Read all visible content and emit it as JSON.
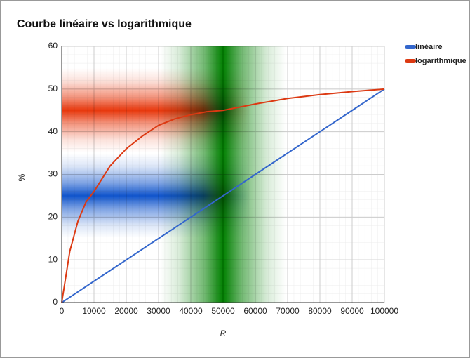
{
  "chart_data": {
    "type": "line",
    "title": "Courbe linéaire vs logarithmique",
    "x_label": "R",
    "y_label": "%",
    "x": [
      0,
      2500,
      5000,
      7500,
      10000,
      15000,
      20000,
      25000,
      30000,
      35000,
      40000,
      45000,
      50000,
      60000,
      70000,
      80000,
      90000,
      100000
    ],
    "series": [
      {
        "name": "linéaire",
        "color": "#3366cc",
        "values": [
          0,
          1.25,
          2.5,
          3.75,
          5,
          7.5,
          10,
          12.5,
          15,
          17.5,
          20,
          22.5,
          25,
          30,
          35,
          40,
          45,
          50
        ]
      },
      {
        "name": "logarithmique",
        "color": "#dc3912",
        "values": [
          0,
          12,
          19,
          23.5,
          26,
          32,
          36,
          39,
          41.5,
          43,
          44,
          44.7,
          45,
          46.5,
          47.8,
          48.7,
          49.4,
          50
        ]
      }
    ],
    "highlights": [
      {
        "axis": "x",
        "value": 50000,
        "color": "#008000"
      },
      {
        "axis": "y",
        "value": 25,
        "color": "#1155cc"
      },
      {
        "axis": "y",
        "value": 45,
        "color": "#e8380d"
      }
    ],
    "xlim": [
      0,
      100000
    ],
    "xticks": [
      0,
      10000,
      20000,
      30000,
      40000,
      50000,
      60000,
      70000,
      80000,
      90000,
      100000
    ],
    "ylim": [
      0,
      60
    ],
    "yticks": [
      0,
      10,
      20,
      30,
      40,
      50,
      60
    ],
    "grid": true,
    "legend": "right"
  }
}
